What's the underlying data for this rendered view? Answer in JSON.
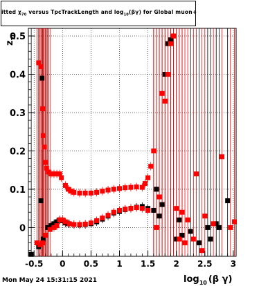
{
  "chart_data": {
    "type": "scatter",
    "title": {
      "part1": "itted  χ",
      "part1_sub": "70",
      "part2": " versus TpcTrackLength and log",
      "part2_sub": "10",
      "part3": "(βγ) for Global muon+"
    },
    "xlabel": {
      "main": "log",
      "sub": "10",
      "rest": "(β γ)"
    },
    "ylabel": {
      "main": "z",
      "sub": "70"
    },
    "xlim": [
      -0.6,
      3.05
    ],
    "ylim": [
      -0.075,
      0.52
    ],
    "x_ticks": [
      -0.5,
      0,
      0.5,
      1,
      1.5,
      2,
      2.5,
      3
    ],
    "x_tick_labels": [
      "-0.5",
      "0",
      "0.5",
      "1",
      "1.5",
      "2",
      "2.5",
      "3"
    ],
    "y_ticks": [
      0,
      0.1,
      0.2,
      0.3,
      0.4,
      0.5
    ],
    "y_tick_labels": [
      "0",
      "0.1",
      "0.2",
      "0.3",
      "0.4",
      "0.5"
    ],
    "grid": true,
    "series": [
      {
        "color": "#000000",
        "points": [
          [
            -0.55,
            -0.07
          ],
          [
            -0.42,
            -0.05
          ],
          [
            -0.38,
            0.07
          ],
          [
            -0.36,
            0.39
          ],
          [
            -0.34,
            -0.03
          ],
          [
            -0.3,
            -0.02
          ],
          [
            -0.26,
            0.0
          ],
          [
            -0.2,
            0.005
          ],
          [
            -0.15,
            0.01
          ],
          [
            -0.1,
            0.015
          ],
          [
            -0.05,
            0.02
          ],
          [
            0.0,
            0.018
          ],
          [
            0.05,
            0.012
          ],
          [
            0.1,
            0.01
          ],
          [
            0.2,
            0.008
          ],
          [
            0.3,
            0.007
          ],
          [
            0.4,
            0.008
          ],
          [
            0.5,
            0.01
          ],
          [
            0.6,
            0.015
          ],
          [
            0.7,
            0.022
          ],
          [
            0.8,
            0.03
          ],
          [
            0.9,
            0.038
          ],
          [
            1.0,
            0.042
          ],
          [
            1.1,
            0.047
          ],
          [
            1.2,
            0.05
          ],
          [
            1.3,
            0.053
          ],
          [
            1.4,
            0.055
          ],
          [
            1.5,
            0.05
          ],
          [
            1.6,
            0.045
          ],
          [
            1.65,
            0.1
          ],
          [
            1.7,
            0.03
          ],
          [
            1.75,
            0.06
          ],
          [
            1.8,
            0.4
          ],
          [
            1.85,
            0.48
          ],
          [
            1.9,
            0.49
          ],
          [
            1.95,
            0.5
          ],
          [
            2.0,
            -0.03
          ],
          [
            2.05,
            0.02
          ],
          [
            2.1,
            -0.02
          ],
          [
            2.25,
            -0.01
          ],
          [
            2.4,
            -0.04
          ],
          [
            2.55,
            0.0
          ],
          [
            2.6,
            -0.03
          ],
          [
            2.7,
            0.01
          ],
          [
            2.75,
            0.0
          ],
          [
            2.9,
            0.07
          ]
        ]
      },
      {
        "color": "#ff0000",
        "points": [
          [
            -0.42,
            0.43
          ],
          [
            -0.38,
            0.42
          ],
          [
            -0.35,
            0.31
          ],
          [
            -0.34,
            0.24
          ],
          [
            -0.32,
            0.21
          ],
          [
            -0.3,
            0.17
          ],
          [
            -0.28,
            0.155
          ],
          [
            -0.25,
            0.145
          ],
          [
            -0.2,
            0.14
          ],
          [
            -0.15,
            0.14
          ],
          [
            -0.1,
            0.14
          ],
          [
            -0.05,
            0.14
          ],
          [
            -0.02,
            0.13
          ],
          [
            0.05,
            0.11
          ],
          [
            0.1,
            0.1
          ],
          [
            0.15,
            0.095
          ],
          [
            0.2,
            0.092
          ],
          [
            0.3,
            0.09
          ],
          [
            0.4,
            0.09
          ],
          [
            0.5,
            0.09
          ],
          [
            0.6,
            0.092
          ],
          [
            0.7,
            0.095
          ],
          [
            0.8,
            0.098
          ],
          [
            0.9,
            0.1
          ],
          [
            1.0,
            0.102
          ],
          [
            1.1,
            0.104
          ],
          [
            1.2,
            0.105
          ],
          [
            1.3,
            0.106
          ],
          [
            1.4,
            0.105
          ],
          [
            1.45,
            0.115
          ],
          [
            1.5,
            0.13
          ],
          [
            1.55,
            0.16
          ],
          [
            1.6,
            0.2
          ],
          [
            1.65,
            0.0
          ],
          [
            1.7,
            0.08
          ],
          [
            1.75,
            0.35
          ],
          [
            1.8,
            0.33
          ],
          [
            1.85,
            0.4
          ],
          [
            1.9,
            0.48
          ],
          [
            1.95,
            0.5
          ],
          [
            2.0,
            0.05
          ],
          [
            2.05,
            -0.03
          ],
          [
            2.1,
            0.04
          ],
          [
            2.15,
            -0.04
          ],
          [
            2.2,
            0.02
          ],
          [
            2.3,
            -0.03
          ],
          [
            2.35,
            0.14
          ],
          [
            2.45,
            -0.06
          ],
          [
            2.5,
            0.03
          ],
          [
            2.65,
            0.01
          ],
          [
            2.8,
            0.185
          ],
          [
            2.95,
            0.0
          ],
          [
            3.02,
            0.015
          ],
          [
            -0.45,
            -0.04
          ],
          [
            -0.4,
            -0.045
          ],
          [
            -0.35,
            -0.04
          ],
          [
            -0.3,
            -0.02
          ],
          [
            -0.22,
            -0.005
          ],
          [
            -0.15,
            0.0
          ],
          [
            -0.1,
            0.005
          ],
          [
            -0.05,
            0.02
          ],
          [
            0.0,
            0.02
          ],
          [
            0.05,
            0.015
          ],
          [
            0.12,
            0.01
          ],
          [
            0.2,
            0.008
          ],
          [
            0.3,
            0.008
          ],
          [
            0.4,
            0.009
          ],
          [
            0.5,
            0.012
          ],
          [
            0.6,
            0.018
          ],
          [
            0.7,
            0.025
          ],
          [
            0.8,
            0.032
          ],
          [
            0.9,
            0.04
          ],
          [
            1.0,
            0.045
          ],
          [
            1.1,
            0.048
          ],
          [
            1.2,
            0.05
          ],
          [
            1.3,
            0.052
          ],
          [
            1.4,
            0.05
          ],
          [
            1.5,
            0.045
          ]
        ]
      }
    ]
  },
  "footer": {
    "timestamp": "Mon May 24 15:31:15 2021"
  }
}
